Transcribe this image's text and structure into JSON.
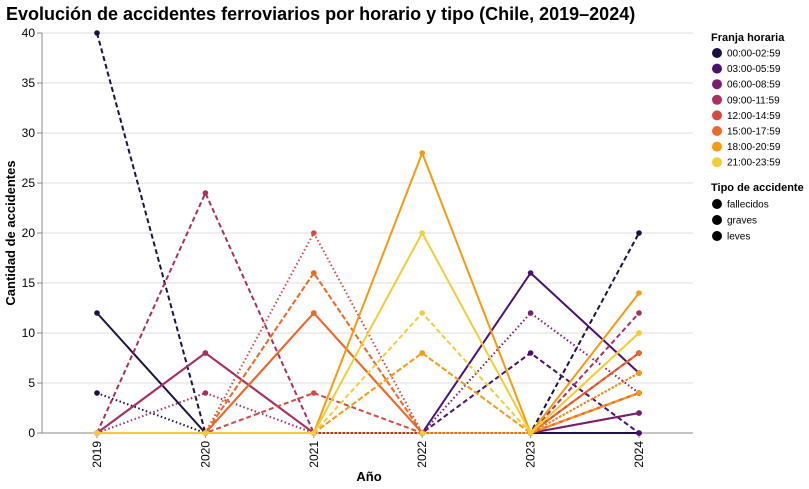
{
  "chart_data": {
    "type": "line",
    "title": "Evolución de accidentes ferroviarios por horario y tipo (Chile, 2019–2024)",
    "xlabel": "Año",
    "ylabel": "Cantidad de accidentes",
    "x": [
      "2019",
      "2020",
      "2021",
      "2022",
      "2023",
      "2024"
    ],
    "ylim": [
      0,
      40
    ],
    "yticks": [
      0,
      5,
      10,
      15,
      20,
      25,
      30,
      35,
      40
    ],
    "grid": true,
    "legend_placement": "right",
    "legend_color_title": "Franja horaria",
    "legend_type_title": "Tipo de accidente",
    "franjas": [
      {
        "name": "00:00-02:59",
        "color": "#1c1044"
      },
      {
        "name": "03:00-05:59",
        "color": "#4a1170"
      },
      {
        "name": "06:00-08:59",
        "color": "#7a1e6f"
      },
      {
        "name": "09:00-11:59",
        "color": "#a83060"
      },
      {
        "name": "12:00-14:59",
        "color": "#d24a45"
      },
      {
        "name": "15:00-17:59",
        "color": "#ec6a28"
      },
      {
        "name": "18:00-20:59",
        "color": "#f59a12"
      },
      {
        "name": "21:00-23:59",
        "color": "#f3cc3a"
      }
    ],
    "tipos": [
      {
        "name": "fallecidos",
        "dash": "dashed"
      },
      {
        "name": "graves",
        "dash": "dotted"
      },
      {
        "name": "leves",
        "dash": "solid"
      }
    ],
    "series": [
      {
        "franja": "00:00-02:59",
        "tipo": "fallecidos",
        "values": [
          40,
          0,
          0,
          0,
          0,
          20
        ]
      },
      {
        "franja": "00:00-02:59",
        "tipo": "graves",
        "values": [
          4,
          0,
          0,
          0,
          0,
          0
        ]
      },
      {
        "franja": "00:00-02:59",
        "tipo": "leves",
        "values": [
          12,
          0,
          0,
          0,
          0,
          0
        ]
      },
      {
        "franja": "03:00-05:59",
        "tipo": "fallecidos",
        "values": [
          0,
          0,
          0,
          0,
          8,
          0
        ]
      },
      {
        "franja": "03:00-05:59",
        "tipo": "graves",
        "values": [
          0,
          0,
          0,
          0,
          0,
          2
        ]
      },
      {
        "franja": "03:00-05:59",
        "tipo": "leves",
        "values": [
          0,
          0,
          0,
          0,
          16,
          6
        ]
      },
      {
        "franja": "06:00-08:59",
        "tipo": "fallecidos",
        "values": [
          0,
          0,
          0,
          0,
          0,
          4
        ]
      },
      {
        "franja": "06:00-08:59",
        "tipo": "graves",
        "values": [
          0,
          0,
          0,
          0,
          12,
          4
        ]
      },
      {
        "franja": "06:00-08:59",
        "tipo": "leves",
        "values": [
          0,
          8,
          0,
          0,
          0,
          2
        ]
      },
      {
        "franja": "09:00-11:59",
        "tipo": "fallecidos",
        "values": [
          0,
          24,
          0,
          0,
          0,
          12
        ]
      },
      {
        "franja": "09:00-11:59",
        "tipo": "graves",
        "values": [
          0,
          4,
          0,
          0,
          0,
          8
        ]
      },
      {
        "franja": "09:00-11:59",
        "tipo": "leves",
        "values": [
          0,
          8,
          0,
          0,
          0,
          4
        ]
      },
      {
        "franja": "12:00-14:59",
        "tipo": "fallecidos",
        "values": [
          0,
          0,
          4,
          0,
          0,
          8
        ]
      },
      {
        "franja": "12:00-14:59",
        "tipo": "graves",
        "values": [
          0,
          0,
          20,
          0,
          0,
          4
        ]
      },
      {
        "franja": "12:00-14:59",
        "tipo": "leves",
        "values": [
          0,
          0,
          12,
          0,
          0,
          8
        ]
      },
      {
        "franja": "15:00-17:59",
        "tipo": "fallecidos",
        "values": [
          0,
          0,
          16,
          0,
          0,
          8
        ]
      },
      {
        "franja": "15:00-17:59",
        "tipo": "graves",
        "values": [
          0,
          0,
          16,
          0,
          0,
          6
        ]
      },
      {
        "franja": "15:00-17:59",
        "tipo": "leves",
        "values": [
          0,
          0,
          12,
          0,
          0,
          4
        ]
      },
      {
        "franja": "18:00-20:59",
        "tipo": "fallecidos",
        "values": [
          0,
          0,
          0,
          8,
          0,
          4
        ]
      },
      {
        "franja": "18:00-20:59",
        "tipo": "graves",
        "values": [
          0,
          0,
          0,
          8,
          0,
          6
        ]
      },
      {
        "franja": "18:00-20:59",
        "tipo": "leves",
        "values": [
          0,
          0,
          0,
          28,
          0,
          14
        ]
      },
      {
        "franja": "21:00-23:59",
        "tipo": "fallecidos",
        "values": [
          0,
          0,
          0,
          12,
          0,
          10
        ]
      },
      {
        "franja": "21:00-23:59",
        "tipo": "graves",
        "values": [
          0,
          0,
          0,
          0,
          0,
          10
        ]
      },
      {
        "franja": "21:00-23:59",
        "tipo": "leves",
        "values": [
          0,
          0,
          0,
          20,
          0,
          10
        ]
      }
    ]
  }
}
